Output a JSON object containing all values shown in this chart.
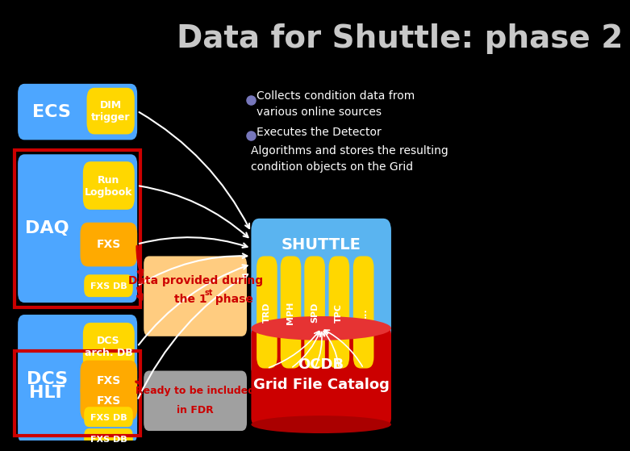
{
  "title": "Data for Shuttle: phase 2",
  "bg_color": "#000000",
  "title_color": "#c8c8c8",
  "blue": "#4da6ff",
  "yellow": "#ffd700",
  "orange_pill": "#ffaa00",
  "gray_pill": "#c8c8c8",
  "red_border": "#cc0000",
  "shuttle_blue": "#5ab4f0",
  "ocdb_red": "#cc0000",
  "orange_banner": "#ffcc80",
  "gray_banner": "#a0a0a0",
  "bullet_color": "#7777bb",
  "annotation1_line1": "Collects condition data from",
  "annotation1_line2": "various online sources",
  "annotation2_line1": "Executes the Detector",
  "annotation2_line2": "Algorithms and stores the resulting",
  "annotation2_line3": "condition objects on the Grid",
  "det_labels": [
    "TRD",
    "MPH",
    "SPD",
    "TPC",
    "..."
  ]
}
